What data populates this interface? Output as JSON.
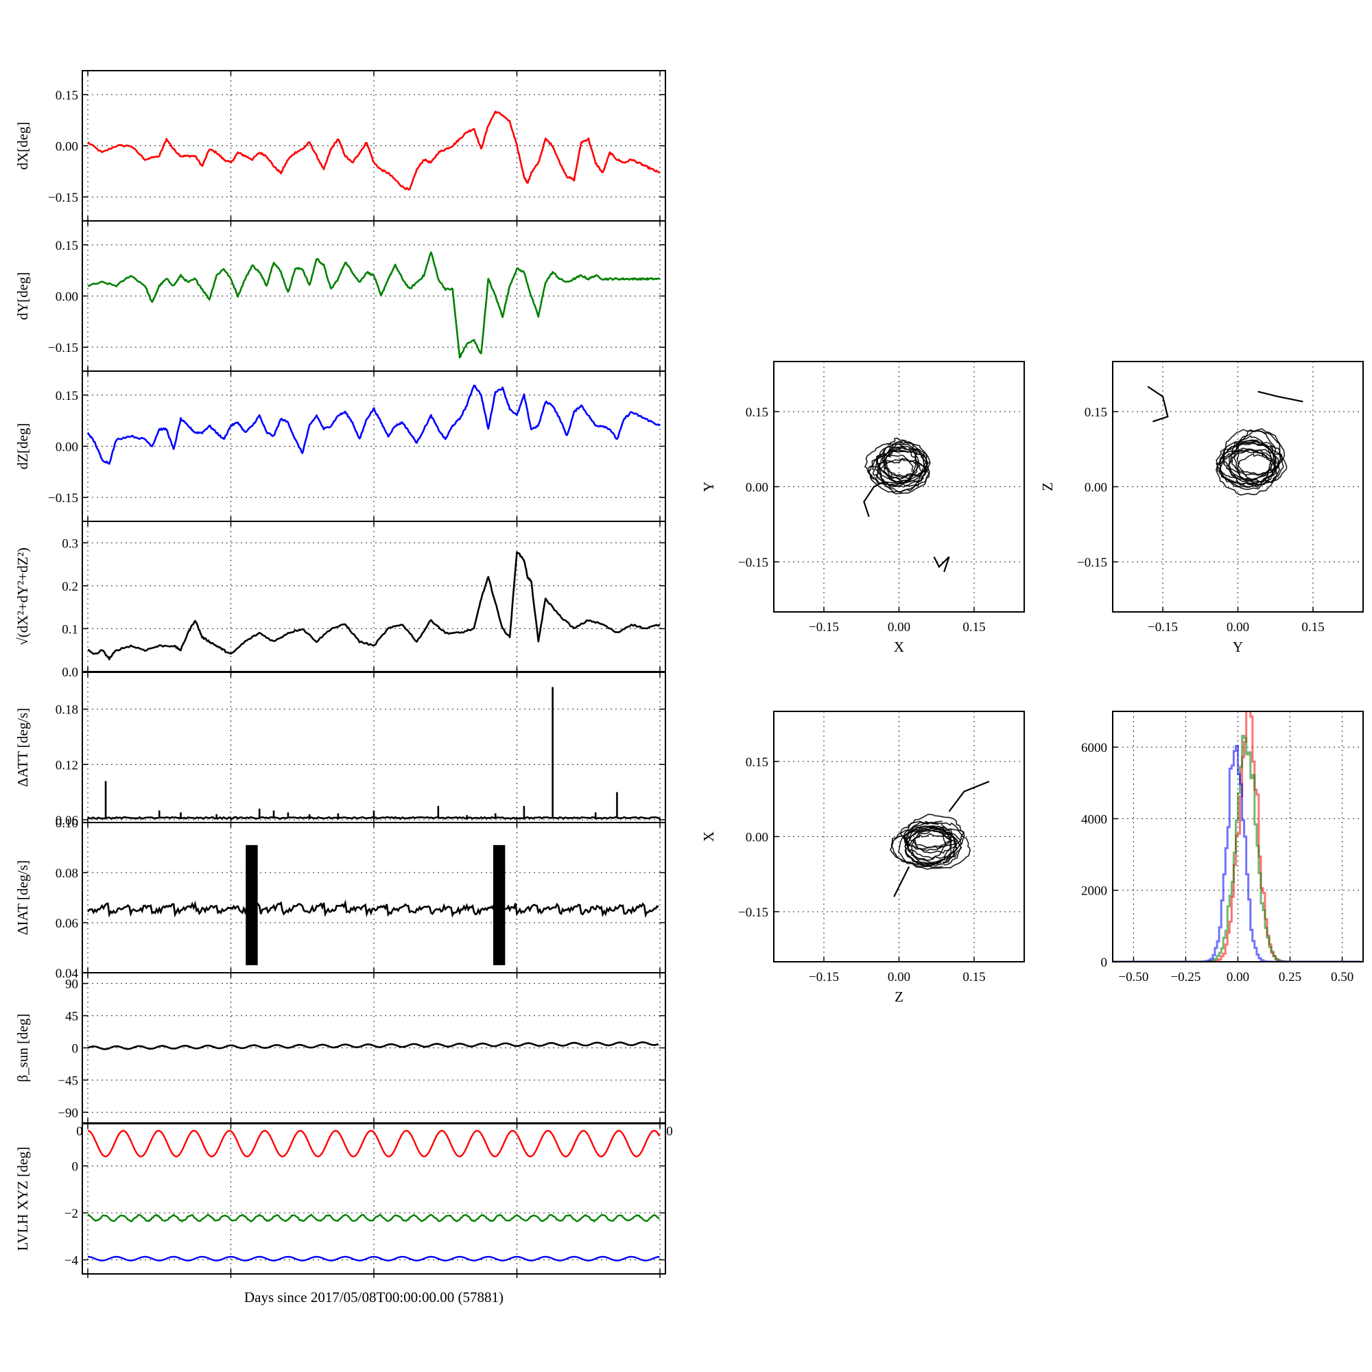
{
  "figure": {
    "xlabel": "Days since 2017/05/08T00:00:00.00 (57881)"
  },
  "time_axis": {
    "x_range": [
      0,
      80
    ],
    "x_ticks": [
      0,
      20,
      40,
      60,
      80
    ],
    "x_tick_labels_visible": [
      "0",
      "0"
    ]
  },
  "chart_data": [
    {
      "id": "dX",
      "type": "line",
      "ylabel": "dX[deg]",
      "color": "#ff0000",
      "ylim": [
        -0.22,
        0.22
      ],
      "yticks": [
        -0.15,
        0.0,
        0.15
      ],
      "ytick_labels": [
        "−0.15",
        "0.00",
        "0.15"
      ],
      "grid": true,
      "x": [
        0,
        2,
        4,
        6,
        8,
        10,
        11,
        12,
        13,
        14,
        15,
        16,
        17,
        18,
        19,
        20,
        21,
        22,
        23,
        24,
        25,
        26,
        27,
        28,
        29,
        30,
        31,
        32,
        33,
        34,
        35,
        36,
        37,
        38,
        39,
        40,
        41,
        42,
        43,
        44,
        45,
        46,
        47,
        48,
        49,
        50,
        51,
        52,
        53,
        54,
        55,
        56,
        57,
        58,
        59,
        60,
        61,
        61.5,
        62,
        63,
        64,
        65,
        66,
        67,
        68,
        69,
        70,
        71,
        72,
        73,
        74,
        75,
        76,
        77,
        78,
        79,
        80
      ],
      "y": [
        0.01,
        -0.02,
        0.0,
        0.0,
        -0.04,
        -0.03,
        0.02,
        -0.01,
        -0.03,
        -0.03,
        -0.03,
        -0.06,
        -0.01,
        -0.02,
        -0.04,
        -0.05,
        -0.02,
        -0.03,
        -0.04,
        -0.02,
        -0.03,
        -0.06,
        -0.08,
        -0.04,
        -0.02,
        -0.01,
        0.01,
        -0.03,
        -0.07,
        -0.01,
        0.02,
        -0.03,
        -0.05,
        -0.02,
        0.01,
        -0.05,
        -0.07,
        -0.08,
        -0.1,
        -0.12,
        -0.13,
        -0.07,
        -0.04,
        -0.05,
        -0.02,
        -0.01,
        0.0,
        0.02,
        0.04,
        0.05,
        -0.01,
        0.06,
        0.1,
        0.09,
        0.07,
        0.0,
        -0.09,
        -0.11,
        -0.08,
        -0.05,
        0.02,
        0.0,
        -0.05,
        -0.09,
        -0.1,
        0.01,
        0.02,
        -0.05,
        -0.08,
        -0.02,
        -0.04,
        -0.05,
        -0.04,
        -0.05,
        -0.06,
        -0.07,
        -0.08
      ]
    },
    {
      "id": "dY",
      "type": "line",
      "ylabel": "dY[deg]",
      "color": "#008000",
      "ylim": [
        -0.22,
        0.22
      ],
      "yticks": [
        -0.15,
        0.0,
        0.15
      ],
      "ytick_labels": [
        "−0.15",
        "0.00",
        "0.15"
      ],
      "grid": true,
      "x": [
        0,
        2,
        4,
        6,
        8,
        9,
        10,
        11,
        12,
        13,
        14,
        15,
        16,
        17,
        18,
        19,
        20,
        21,
        22,
        23,
        24,
        25,
        26,
        27,
        28,
        29,
        30,
        31,
        32,
        33,
        34,
        35,
        36,
        37,
        38,
        39,
        40,
        41,
        42,
        43,
        44,
        45,
        46,
        47,
        48,
        49,
        50,
        51,
        52,
        53,
        54,
        55,
        56,
        57,
        58,
        59,
        60,
        61,
        62,
        63,
        64,
        65,
        66,
        67,
        68,
        69,
        70,
        71,
        72,
        73,
        74,
        75,
        76,
        77,
        78,
        79,
        80
      ],
      "y": [
        0.03,
        0.04,
        0.03,
        0.06,
        0.03,
        -0.02,
        0.03,
        0.05,
        0.03,
        0.06,
        0.04,
        0.05,
        0.02,
        -0.01,
        0.06,
        0.08,
        0.05,
        0.0,
        0.05,
        0.09,
        0.07,
        0.03,
        0.1,
        0.07,
        0.01,
        0.08,
        0.08,
        0.03,
        0.11,
        0.09,
        0.02,
        0.05,
        0.1,
        0.07,
        0.04,
        0.07,
        0.06,
        0.0,
        0.05,
        0.09,
        0.05,
        0.02,
        0.04,
        0.06,
        0.13,
        0.05,
        0.02,
        0.02,
        -0.18,
        -0.14,
        -0.13,
        -0.17,
        0.05,
        0.0,
        -0.06,
        0.03,
        0.08,
        0.07,
        0.0,
        -0.06,
        0.04,
        0.07,
        0.05,
        0.04,
        0.05,
        0.06,
        0.05,
        0.06,
        0.05,
        0.05,
        0.05,
        0.05,
        0.05,
        0.05,
        0.05,
        0.05,
        0.05
      ]
    },
    {
      "id": "dZ",
      "type": "line",
      "ylabel": "dZ[deg]",
      "color": "#0000ff",
      "ylim": [
        -0.22,
        0.22
      ],
      "yticks": [
        -0.15,
        0.0,
        0.15
      ],
      "ytick_labels": [
        "−0.15",
        "0.00",
        "0.15"
      ],
      "grid": true,
      "x": [
        0,
        1,
        2,
        3,
        4,
        6,
        8,
        9,
        10,
        11,
        12,
        13,
        14,
        15,
        16,
        17,
        18,
        19,
        20,
        21,
        22,
        23,
        24,
        25,
        26,
        27,
        28,
        29,
        30,
        31,
        32,
        33,
        34,
        35,
        36,
        37,
        38,
        39,
        40,
        41,
        42,
        43,
        44,
        45,
        46,
        47,
        48,
        49,
        50,
        51,
        52,
        53,
        54,
        55,
        56,
        57,
        58,
        59,
        60,
        61,
        62,
        63,
        64,
        65,
        66,
        67,
        68,
        69,
        70,
        71,
        72,
        73,
        74,
        75,
        76,
        77,
        78,
        79,
        80
      ],
      "y": [
        0.04,
        0.01,
        -0.04,
        -0.05,
        0.02,
        0.03,
        0.02,
        0.0,
        0.05,
        0.05,
        -0.01,
        0.08,
        0.06,
        0.04,
        0.04,
        0.06,
        0.04,
        0.02,
        0.06,
        0.07,
        0.04,
        0.06,
        0.09,
        0.04,
        0.03,
        0.08,
        0.07,
        0.02,
        -0.02,
        0.06,
        0.09,
        0.05,
        0.06,
        0.09,
        0.1,
        0.07,
        0.02,
        0.08,
        0.11,
        0.07,
        0.03,
        0.06,
        0.07,
        0.04,
        0.01,
        0.05,
        0.09,
        0.05,
        0.02,
        0.06,
        0.08,
        0.12,
        0.18,
        0.15,
        0.05,
        0.16,
        0.17,
        0.11,
        0.09,
        0.15,
        0.05,
        0.06,
        0.13,
        0.12,
        0.08,
        0.03,
        0.1,
        0.12,
        0.09,
        0.06,
        0.06,
        0.05,
        0.02,
        0.08,
        0.1,
        0.09,
        0.08,
        0.07,
        0.06
      ]
    },
    {
      "id": "dR",
      "type": "line",
      "ylabel": "√(dX²+dY²+dZ²)",
      "color": "#000000",
      "ylim": [
        0.0,
        0.35
      ],
      "yticks": [
        0.0,
        0.1,
        0.2,
        0.3
      ],
      "ytick_labels": [
        "0.0",
        "0.1",
        "0.2",
        "0.3"
      ],
      "grid": true,
      "x": [
        0,
        1,
        2,
        3,
        4,
        6,
        8,
        10,
        12,
        13,
        14,
        15,
        16,
        17,
        18,
        19,
        20,
        22,
        24,
        26,
        28,
        30,
        32,
        34,
        36,
        38,
        40,
        42,
        44,
        46,
        48,
        50,
        52,
        54,
        55,
        56,
        57,
        58,
        59,
        60,
        61,
        61.5,
        62,
        63,
        64,
        66,
        68,
        70,
        72,
        74,
        76,
        78,
        80
      ],
      "y": [
        0.05,
        0.04,
        0.05,
        0.03,
        0.05,
        0.06,
        0.05,
        0.06,
        0.06,
        0.05,
        0.09,
        0.12,
        0.08,
        0.07,
        0.06,
        0.05,
        0.04,
        0.07,
        0.09,
        0.07,
        0.09,
        0.1,
        0.07,
        0.1,
        0.11,
        0.07,
        0.06,
        0.1,
        0.11,
        0.07,
        0.12,
        0.09,
        0.09,
        0.1,
        0.17,
        0.22,
        0.16,
        0.1,
        0.08,
        0.28,
        0.26,
        0.22,
        0.21,
        0.07,
        0.17,
        0.13,
        0.1,
        0.12,
        0.11,
        0.09,
        0.11,
        0.1,
        0.11
      ]
    },
    {
      "id": "dATT",
      "type": "line",
      "ylabel": "ΔATT [deg/s]",
      "color": "#000000",
      "ylim": [
        0.057,
        0.22
      ],
      "yticks": [
        0.06,
        0.12,
        0.18
      ],
      "ytick_labels": [
        "0.06",
        "0.12",
        "0.18"
      ],
      "grid": true,
      "baseline": 0.062,
      "spike_x": [
        2.5,
        10,
        13,
        18,
        24,
        26,
        28,
        31,
        35,
        40,
        49,
        53,
        57,
        61,
        65,
        71,
        74
      ],
      "spike_y": [
        0.102,
        0.07,
        0.068,
        0.066,
        0.072,
        0.07,
        0.068,
        0.066,
        0.067,
        0.07,
        0.075,
        0.065,
        0.067,
        0.075,
        0.204,
        0.068,
        0.09
      ]
    },
    {
      "id": "dIAT",
      "type": "line",
      "ylabel": "ΔIAT [deg/s]",
      "color": "#000000",
      "ylim": [
        0.04,
        0.1
      ],
      "yticks": [
        0.04,
        0.06,
        0.08,
        0.1
      ],
      "ytick_labels": [
        "0.04",
        "0.06",
        "0.08",
        "0.10"
      ],
      "grid": true,
      "baseline": 0.064,
      "burst_x": [
        [
          22.2,
          23.8
        ],
        [
          56.8,
          58.4
        ]
      ],
      "burst_range": [
        0.043,
        0.091
      ]
    },
    {
      "id": "beta_sun",
      "type": "line",
      "ylabel": "β_sun [deg]",
      "color": "#000000",
      "ylim": [
        -105,
        105
      ],
      "yticks": [
        -90,
        -45,
        0,
        45,
        90
      ],
      "ytick_labels": [
        "−90",
        "−45",
        "0",
        "45",
        "90"
      ],
      "grid": true,
      "mean": [
        0,
        6
      ],
      "amplitude": 2,
      "period_days": 3.2
    },
    {
      "id": "lvlh",
      "type": "line",
      "ylabel": "LVLH XYZ [deg]",
      "ylim": [
        -4.6,
        1.8
      ],
      "yticks": [
        -4,
        -2,
        0
      ],
      "ytick_labels": [
        "−4",
        "−2",
        "0"
      ],
      "grid": true,
      "series": [
        {
          "color": "#ff0000",
          "mean": 0.95,
          "amplitude": 0.55,
          "period_days": 4.95
        },
        {
          "color": "#008000",
          "mean": -2.22,
          "amplitude": 0.12,
          "period_days": 2.4
        },
        {
          "color": "#0000ff",
          "mean": -3.95,
          "amplitude": 0.08,
          "period_days": 4.0
        }
      ]
    },
    {
      "id": "XY",
      "type": "scatter",
      "xlabel": "X",
      "ylabel": "Y",
      "xlim": [
        -0.25,
        0.25
      ],
      "ylim": [
        -0.25,
        0.25
      ],
      "ticks": [
        -0.15,
        0.0,
        0.15
      ],
      "tick_labels": [
        "−0.15",
        "0.00",
        "0.15"
      ],
      "color": "#000000",
      "loops": {
        "center": [
          0.0,
          0.04
        ],
        "radius": [
          0.055,
          0.045
        ],
        "count": 14
      },
      "arms": [
        [
          [
            -0.03,
            0.01
          ],
          [
            -0.05,
            0.0
          ],
          [
            -0.07,
            -0.03
          ],
          [
            -0.06,
            -0.06
          ]
        ],
        [
          [
            0.07,
            -0.14
          ],
          [
            0.08,
            -0.16
          ],
          [
            0.1,
            -0.14
          ],
          [
            0.09,
            -0.17
          ]
        ]
      ]
    },
    {
      "id": "YZ",
      "type": "scatter",
      "xlabel": "Y",
      "ylabel": "Z",
      "xlim": [
        -0.25,
        0.25
      ],
      "ylim": [
        -0.25,
        0.25
      ],
      "ticks": [
        -0.15,
        0.0,
        0.15
      ],
      "tick_labels": [
        "−0.15",
        "0.00",
        "0.15"
      ],
      "color": "#000000",
      "loops": {
        "center": [
          0.03,
          0.05
        ],
        "radius": [
          0.06,
          0.05
        ],
        "count": 14
      },
      "arms": [
        [
          [
            -0.18,
            0.2
          ],
          [
            -0.15,
            0.18
          ],
          [
            -0.14,
            0.14
          ],
          [
            -0.17,
            0.13
          ]
        ],
        [
          [
            0.04,
            0.19
          ],
          [
            0.08,
            0.18
          ],
          [
            0.13,
            0.17
          ]
        ]
      ]
    },
    {
      "id": "ZX",
      "type": "scatter",
      "xlabel": "Z",
      "ylabel": "X",
      "xlim": [
        -0.25,
        0.25
      ],
      "ylim": [
        -0.25,
        0.25
      ],
      "ticks": [
        -0.15,
        0.0,
        0.15
      ],
      "tick_labels": [
        "−0.15",
        "0.00",
        "0.15"
      ],
      "color": "#000000",
      "loops": {
        "center": [
          0.06,
          -0.01
        ],
        "radius": [
          0.065,
          0.04
        ],
        "count": 14
      },
      "arms": [
        [
          [
            0.1,
            0.05
          ],
          [
            0.13,
            0.09
          ],
          [
            0.18,
            0.11
          ]
        ],
        [
          [
            0.02,
            -0.06
          ],
          [
            0.0,
            -0.1
          ],
          [
            -0.01,
            -0.12
          ]
        ]
      ]
    },
    {
      "id": "hist",
      "type": "bar",
      "xlim": [
        -0.6,
        0.6
      ],
      "ylim": [
        0,
        7000
      ],
      "xticks": [
        -0.5,
        -0.25,
        0.0,
        0.25,
        0.5
      ],
      "xtick_labels": [
        "−0.50",
        "−0.25",
        "0.00",
        "0.25",
        "0.50"
      ],
      "yticks": [
        0,
        2000,
        4000,
        6000
      ],
      "ytick_labels": [
        "0",
        "2000",
        "4000",
        "6000"
      ],
      "series": [
        {
          "color": "#ff0000",
          "mean": 0.045,
          "sigma": 0.045,
          "peak": 6800
        },
        {
          "color": "#008000",
          "mean": 0.035,
          "sigma": 0.05,
          "peak": 5900
        },
        {
          "color": "#0000ff",
          "mean": -0.015,
          "sigma": 0.04,
          "peak": 6000
        }
      ]
    }
  ]
}
